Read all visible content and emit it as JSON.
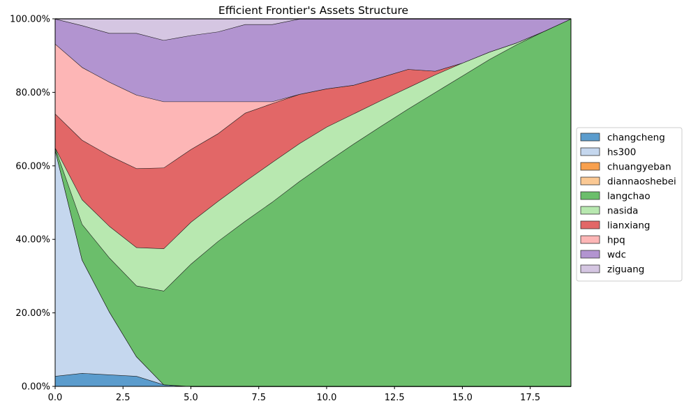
{
  "chart_data": {
    "type": "area",
    "stacked": true,
    "normalized": true,
    "title": "Efficient Frontier's Assets Structure",
    "xlabel": "",
    "ylabel": "",
    "xlim": [
      0,
      19
    ],
    "ylim": [
      0,
      1
    ],
    "x_ticks": [
      0.0,
      2.5,
      5.0,
      7.5,
      10.0,
      12.5,
      15.0,
      17.5
    ],
    "x_tick_labels": [
      "0.0",
      "2.5",
      "5.0",
      "7.5",
      "10.0",
      "12.5",
      "15.0",
      "17.5"
    ],
    "y_ticks": [
      0,
      0.2,
      0.4,
      0.6,
      0.8,
      1.0
    ],
    "y_tick_labels": [
      "0.00%",
      "20.00%",
      "40.00%",
      "60.00%",
      "80.00%",
      "100.00%"
    ],
    "grid": true,
    "legend_position": "right",
    "x": [
      0,
      1,
      2,
      3,
      4,
      5,
      6,
      7,
      8,
      9,
      10,
      11,
      12,
      13,
      14,
      15,
      16,
      17,
      18,
      19
    ],
    "series": [
      {
        "name": "changcheng",
        "color": "#5b9ccd",
        "values": [
          0.028,
          0.036,
          0.032,
          0.028,
          0.005,
          0,
          0,
          0,
          0,
          0,
          0,
          0,
          0,
          0,
          0,
          0,
          0,
          0,
          0,
          0
        ]
      },
      {
        "name": "hs300",
        "color": "#c5d7ee",
        "values": [
          0.617,
          0.308,
          0.171,
          0.053,
          0,
          0,
          0,
          0,
          0,
          0,
          0,
          0,
          0,
          0,
          0,
          0,
          0,
          0,
          0,
          0
        ]
      },
      {
        "name": "chuangyeban",
        "color": "#f8a04e",
        "values": [
          0,
          0,
          0,
          0,
          0,
          0,
          0,
          0,
          0,
          0,
          0,
          0,
          0,
          0,
          0,
          0,
          0,
          0,
          0,
          0
        ]
      },
      {
        "name": "diannaoshebei",
        "color": "#fbc994",
        "values": [
          0,
          0,
          0,
          0,
          0,
          0,
          0,
          0,
          0,
          0,
          0,
          0,
          0,
          0,
          0,
          0,
          0,
          0,
          0,
          0
        ]
      },
      {
        "name": "langchao",
        "color": "#6bbe6b",
        "values": [
          0.005,
          0.097,
          0.147,
          0.193,
          0.255,
          0.333,
          0.395,
          0.45,
          0.502,
          0.558,
          0.61,
          0.66,
          0.708,
          0.755,
          0.8,
          0.845,
          0.89,
          0.93,
          0.966,
          1.0
        ]
      },
      {
        "name": "nasida",
        "color": "#b8e8b0",
        "values": [
          0,
          0.067,
          0.086,
          0.104,
          0.115,
          0.114,
          0.109,
          0.108,
          0.108,
          0.103,
          0.096,
          0.082,
          0.07,
          0.058,
          0.048,
          0.035,
          0.02,
          0.005,
          0,
          0
        ]
      },
      {
        "name": "lianxiang",
        "color": "#e26767",
        "values": [
          0.092,
          0.162,
          0.192,
          0.215,
          0.22,
          0.198,
          0.184,
          0.186,
          0.16,
          0.134,
          0.104,
          0.078,
          0.063,
          0.05,
          0.01,
          0,
          0,
          0,
          0,
          0
        ]
      },
      {
        "name": "hpq",
        "color": "#fdb6b6",
        "values": [
          0.19,
          0.198,
          0.2,
          0.2,
          0.18,
          0.13,
          0.087,
          0.031,
          0.005,
          0,
          0,
          0,
          0,
          0,
          0,
          0,
          0,
          0,
          0,
          0
        ]
      },
      {
        "name": "wdc",
        "color": "#b294d0",
        "values": [
          0.068,
          0.114,
          0.133,
          0.168,
          0.167,
          0.18,
          0.19,
          0.21,
          0.21,
          0.205,
          0.19,
          0.18,
          0.159,
          0.137,
          0.142,
          0.12,
          0.09,
          0.065,
          0.034,
          0
        ]
      },
      {
        "name": "ziguang",
        "color": "#d5c6e2",
        "values": [
          0,
          0.018,
          0.039,
          0.039,
          0.058,
          0.045,
          0.035,
          0.015,
          0.015,
          0,
          0,
          0,
          0,
          0,
          0,
          0,
          0,
          0,
          0,
          0
        ]
      }
    ]
  }
}
